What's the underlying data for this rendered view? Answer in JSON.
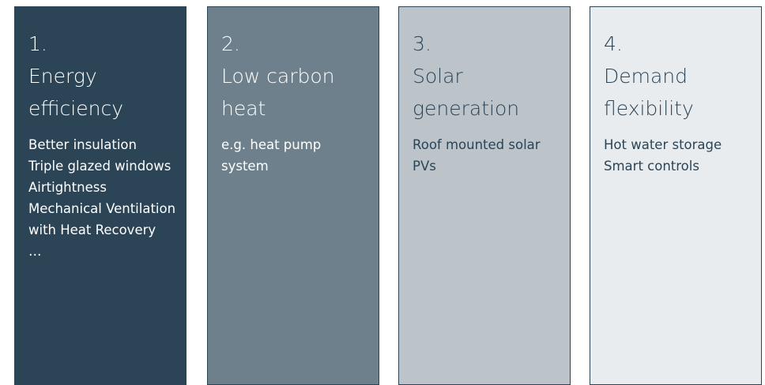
{
  "cards": [
    {
      "number": "1.",
      "title": "Energy efficiency",
      "items": [
        "Better insulation",
        "Triple glazed windows",
        "Airtightness",
        "Mechanical Ventilation with Heat Recovery",
        "…"
      ]
    },
    {
      "number": "2.",
      "title": "Low carbon heat",
      "items": [
        "e.g. heat pump system"
      ]
    },
    {
      "number": "3.",
      "title": "Solar generation",
      "items": [
        "Roof mounted solar PVs"
      ]
    },
    {
      "number": "4.",
      "title": "Demand flexibility",
      "items": [
        "Hot water storage",
        "Smart controls"
      ]
    }
  ]
}
